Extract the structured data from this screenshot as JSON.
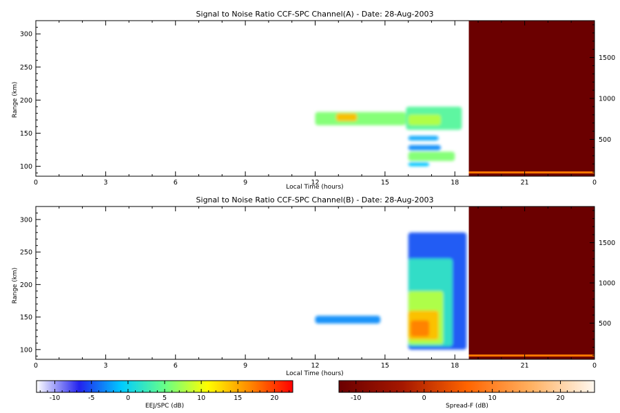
{
  "chart_data": [
    {
      "type": "heatmap",
      "title": "Signal to Noise Ratio CCF-SPC Channel(A) - Date: 28-Aug-2003",
      "xlabel": "Local Time (hours)",
      "ylabel": "Range (km)",
      "xlim": [
        0,
        24
      ],
      "ylim": [
        85,
        320
      ],
      "y2lim": [
        50,
        1950
      ],
      "xticks": [
        "0",
        "3",
        "6",
        "9",
        "12",
        "15",
        "18",
        "21",
        "0"
      ],
      "yticks": [
        100,
        150,
        200,
        250,
        300
      ],
      "y2ticks": [
        500,
        1000,
        1500
      ],
      "spread_f_start_hour": 18.6,
      "blobs": [
        {
          "x0": 12.0,
          "x1": 15.9,
          "y0": 162,
          "y1": 182,
          "snr": 6
        },
        {
          "x0": 12.9,
          "x1": 13.8,
          "y0": 168,
          "y1": 180,
          "snr": 14
        },
        {
          "x0": 15.9,
          "x1": 18.3,
          "y0": 155,
          "y1": 190,
          "snr": 4
        },
        {
          "x0": 16.0,
          "x1": 17.4,
          "y0": 162,
          "y1": 178,
          "snr": 8
        },
        {
          "x0": 16.0,
          "x1": 17.3,
          "y0": 139,
          "y1": 146,
          "snr": -2
        },
        {
          "x0": 16.0,
          "x1": 17.4,
          "y0": 124,
          "y1": 132,
          "snr": -3
        },
        {
          "x0": 16.0,
          "x1": 18.0,
          "y0": 108,
          "y1": 122,
          "snr": 6
        },
        {
          "x0": 16.0,
          "x1": 16.9,
          "y0": 100,
          "y1": 106,
          "snr": -1
        }
      ]
    },
    {
      "type": "heatmap",
      "title": "Signal to Noise Ratio CCF-SPC Channel(B) - Date: 28-Aug-2003",
      "xlabel": "Local Time (hours)",
      "ylabel": "Range (km)",
      "xlim": [
        0,
        24
      ],
      "ylim": [
        85,
        320
      ],
      "y2lim": [
        50,
        1950
      ],
      "xticks": [
        "0",
        "3",
        "6",
        "9",
        "12",
        "15",
        "18",
        "21",
        "0"
      ],
      "yticks": [
        100,
        150,
        200,
        250,
        300
      ],
      "y2ticks": [
        500,
        1000,
        1500
      ],
      "spread_f_start_hour": 18.6,
      "blobs": [
        {
          "x0": 12.0,
          "x1": 14.8,
          "y0": 140,
          "y1": 152,
          "snr": -3
        },
        {
          "x0": 16.0,
          "x1": 18.5,
          "y0": 100,
          "y1": 280,
          "snr": -5
        },
        {
          "x0": 16.0,
          "x1": 17.9,
          "y0": 105,
          "y1": 240,
          "snr": 2
        },
        {
          "x0": 16.0,
          "x1": 17.5,
          "y0": 108,
          "y1": 190,
          "snr": 8
        },
        {
          "x0": 16.0,
          "x1": 17.3,
          "y0": 115,
          "y1": 160,
          "snr": 14
        },
        {
          "x0": 16.1,
          "x1": 16.9,
          "y0": 120,
          "y1": 145,
          "snr": 17
        }
      ]
    }
  ],
  "colorbars": [
    {
      "label": "EEJ/SPC (dB)",
      "ticks": [
        "-10",
        "-5",
        "0",
        "5",
        "10",
        "15",
        "20"
      ],
      "range": [
        -12.5,
        22.5
      ],
      "colors": [
        "#ffffff",
        "#2222ee",
        "#00ccff",
        "#66ff88",
        "#ffff00",
        "#ff8800",
        "#ff0000"
      ]
    },
    {
      "label": "Spread-F (dB)",
      "ticks": [
        "-10",
        "0",
        "10",
        "20"
      ],
      "range": [
        -12.5,
        25
      ],
      "colors": [
        "#6b0000",
        "#a51800",
        "#ff6400",
        "#ffb060",
        "#fff8f0"
      ]
    }
  ],
  "colors": {
    "spread_f_bg": "#6b0000",
    "spread_f_line": "#ff7700"
  }
}
